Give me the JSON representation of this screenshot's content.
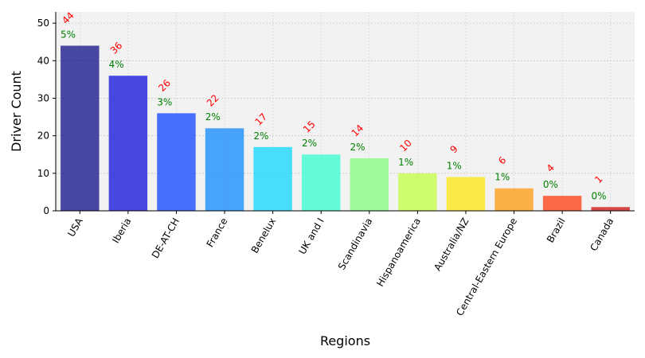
{
  "chart_data": {
    "type": "bar",
    "categories": [
      "USA",
      "Iberia",
      "DE-AT-CH",
      "France",
      "Benelux",
      "UK and I",
      "Scandinavia",
      "Hispanoamerica",
      "Australia/NZ",
      "Central-Eastern Europe",
      "Brazil",
      "Canada"
    ],
    "values": [
      44,
      36,
      26,
      22,
      17,
      15,
      14,
      10,
      9,
      6,
      4,
      1
    ],
    "value_labels": [
      "44",
      "36",
      "26",
      "22",
      "17",
      "15",
      "14",
      "10",
      "9",
      "6",
      "4",
      "1"
    ],
    "percent_labels": [
      "5%",
      "4%",
      "3%",
      "2%",
      "2%",
      "2%",
      "2%",
      "1%",
      "1%",
      "1%",
      "0%",
      "0%"
    ],
    "bar_colors": [
      "#000080",
      "#0000d9",
      "#0037ff",
      "#0081ff",
      "#00d4ff",
      "#29ffce",
      "#7dff7a",
      "#c1ff37",
      "#ffe600",
      "#ff9400",
      "#ff3000",
      "#cc0000"
    ],
    "bar_opacity": 0.7,
    "value_label_color": "#ff0000",
    "percent_label_color": "#008000",
    "xlabel": "Regions",
    "ylabel": "Driver Count",
    "yticks": [
      0,
      10,
      20,
      30,
      40,
      50
    ],
    "ylim": [
      0,
      53
    ],
    "grid": "y-dotted",
    "plot_background": "#f2f2f2"
  }
}
